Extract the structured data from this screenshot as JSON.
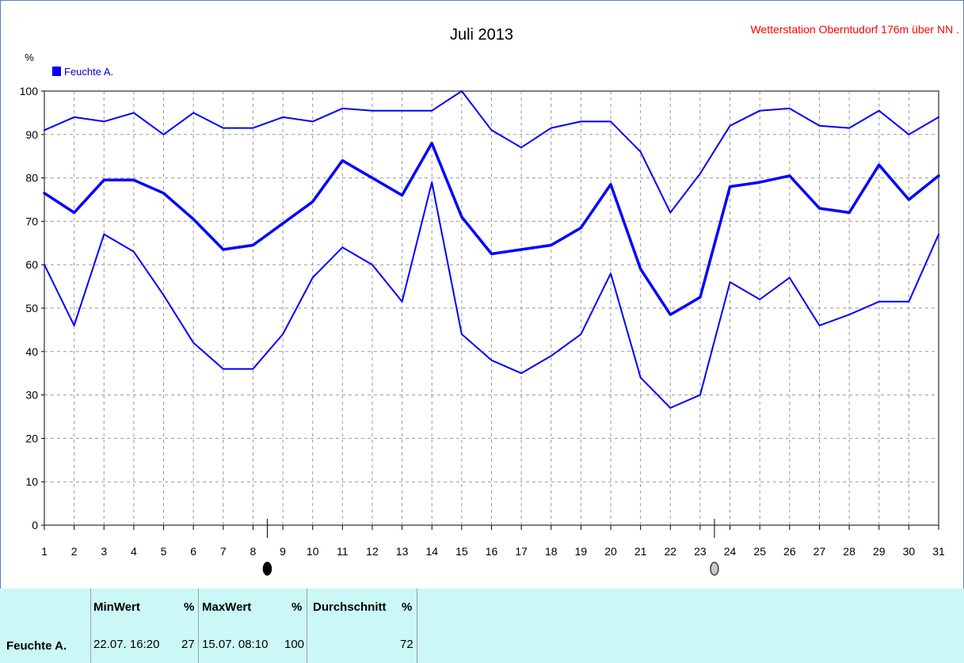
{
  "header": {
    "title": "Juli 2013",
    "station": "Wetterstation Oberntudorf 176m über NN  ."
  },
  "legend": {
    "unit": "%",
    "label": "Feuchte A.",
    "color": "#0000ff"
  },
  "chart_data": {
    "type": "line",
    "title": "Juli 2013",
    "ylabel": "%",
    "ylim": [
      0,
      100
    ],
    "yticks": [
      0,
      10,
      20,
      30,
      40,
      50,
      60,
      70,
      80,
      90,
      100
    ],
    "x": [
      1,
      2,
      3,
      4,
      5,
      6,
      7,
      8,
      9,
      10,
      11,
      12,
      13,
      14,
      15,
      16,
      17,
      18,
      19,
      20,
      21,
      22,
      23,
      24,
      25,
      26,
      27,
      28,
      29,
      30,
      31
    ],
    "grid": true,
    "legend_position": "top-left",
    "color": "#0000ff",
    "moon_markers": [
      {
        "day": 8,
        "phase": "full-moon-icon"
      },
      {
        "day": 23,
        "phase": "new-moon-icon"
      }
    ],
    "series": [
      {
        "values": [
          91,
          94,
          93,
          95,
          90,
          95,
          91.5,
          91.5,
          94,
          93,
          96,
          95.5,
          95.5,
          95.5,
          100,
          91,
          87,
          91.5,
          93,
          93,
          86,
          72,
          81,
          92,
          95.5,
          96,
          92,
          91.5,
          95.5,
          90,
          94
        ],
        "width": 2
      },
      {
        "values": [
          76.5,
          72,
          79.5,
          79.5,
          76.5,
          70.5,
          63.5,
          64.5,
          69.5,
          74.5,
          84,
          80,
          76,
          88,
          71,
          62.5,
          63.5,
          64.5,
          68.5,
          78.5,
          59,
          48.5,
          52.5,
          78,
          79,
          80.5,
          73,
          72,
          83,
          75,
          80.5
        ],
        "width": 3.5
      },
      {
        "values": [
          60,
          46,
          67,
          63,
          53,
          42,
          36,
          36,
          44,
          57,
          64,
          60,
          51.5,
          79,
          44,
          38,
          35,
          39,
          44,
          58,
          34,
          27,
          30,
          56,
          52,
          57,
          46,
          48.5,
          51.5,
          51.5,
          67
        ],
        "width": 2
      }
    ]
  },
  "stats": {
    "headers": {
      "min": "MinWert",
      "min_unit": "%",
      "max": "MaxWert",
      "max_unit": "%",
      "avg": "Durchschnitt",
      "avg_unit": "%"
    },
    "row": {
      "name": "Feuchte A.",
      "min_time": "22.07. 16:20",
      "min_value": "27",
      "max_time": "15.07. 08:10",
      "max_value": "100",
      "avg_value": "72"
    }
  }
}
